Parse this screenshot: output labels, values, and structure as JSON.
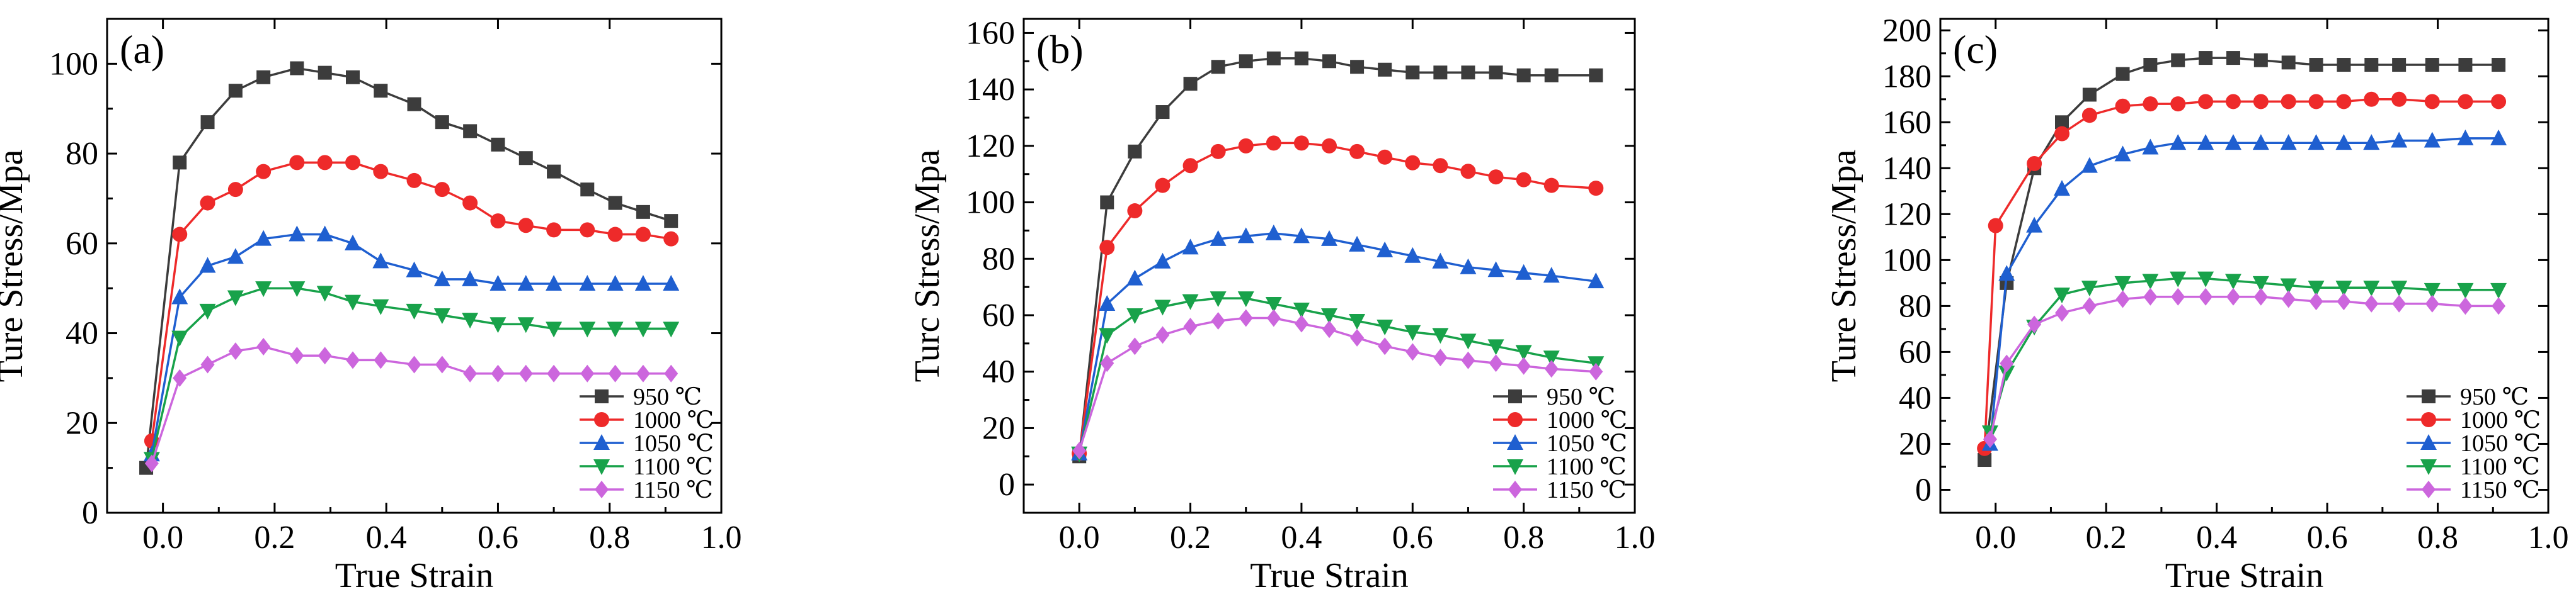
{
  "colors": {
    "s950": "#3c3c3c",
    "s1000": "#ee2a2a",
    "s1050": "#1f5fd0",
    "s1100": "#18a24a",
    "s1150": "#cc66dd"
  },
  "chart_data": [
    {
      "type": "line",
      "panel_label": "(a)",
      "xlabel": "True Strain",
      "ylabel": "Ture Stress/Mpa",
      "xlim": [
        -0.1,
        1.0
      ],
      "ylim": [
        0,
        110
      ],
      "xticks": [
        0.0,
        0.2,
        0.4,
        0.6,
        0.8,
        1.0
      ],
      "xtick_labels": [
        "0.0",
        "0.2",
        "0.4",
        "0.6",
        "0.8",
        "1.0"
      ],
      "yticks": [
        0,
        20,
        40,
        60,
        80,
        100
      ],
      "ytick_labels": [
        "0",
        "20",
        "40",
        "60",
        "80",
        "100"
      ],
      "legend_position": "bottom-right",
      "series": [
        {
          "name": "950 ℃",
          "marker": "square",
          "color_key": "s950",
          "x": [
            -0.03,
            0.03,
            0.08,
            0.13,
            0.18,
            0.24,
            0.29,
            0.34,
            0.39,
            0.45,
            0.5,
            0.55,
            0.6,
            0.65,
            0.7,
            0.76,
            0.81,
            0.86,
            0.91
          ],
          "y": [
            10,
            78,
            87,
            94,
            97,
            99,
            98,
            97,
            94,
            91,
            87,
            85,
            82,
            79,
            76,
            72,
            69,
            67,
            65
          ]
        },
        {
          "name": "1000 ℃",
          "marker": "circle",
          "color_key": "s1000",
          "x": [
            -0.02,
            0.03,
            0.08,
            0.13,
            0.18,
            0.24,
            0.29,
            0.34,
            0.39,
            0.45,
            0.5,
            0.55,
            0.6,
            0.65,
            0.7,
            0.76,
            0.81,
            0.86,
            0.91
          ],
          "y": [
            16,
            62,
            69,
            72,
            76,
            78,
            78,
            78,
            76,
            74,
            72,
            69,
            65,
            64,
            63,
            63,
            62,
            62,
            61
          ]
        },
        {
          "name": "1050 ℃",
          "marker": "triangle-up",
          "color_key": "s1050",
          "x": [
            -0.02,
            0.03,
            0.08,
            0.13,
            0.18,
            0.24,
            0.29,
            0.34,
            0.39,
            0.45,
            0.5,
            0.55,
            0.6,
            0.65,
            0.7,
            0.76,
            0.81,
            0.86,
            0.91
          ],
          "y": [
            13,
            48,
            55,
            57,
            61,
            62,
            62,
            60,
            56,
            54,
            52,
            52,
            51,
            51,
            51,
            51,
            51,
            51,
            51
          ]
        },
        {
          "name": "1100 ℃",
          "marker": "triangle-down",
          "color_key": "s1100",
          "x": [
            -0.02,
            0.03,
            0.08,
            0.13,
            0.18,
            0.24,
            0.29,
            0.34,
            0.39,
            0.45,
            0.5,
            0.55,
            0.6,
            0.65,
            0.7,
            0.76,
            0.81,
            0.86,
            0.91
          ],
          "y": [
            12,
            39,
            45,
            48,
            50,
            50,
            49,
            47,
            46,
            45,
            44,
            43,
            42,
            42,
            41,
            41,
            41,
            41,
            41
          ]
        },
        {
          "name": "1150 ℃",
          "marker": "diamond",
          "color_key": "s1150",
          "x": [
            -0.02,
            0.03,
            0.08,
            0.13,
            0.18,
            0.24,
            0.29,
            0.34,
            0.39,
            0.45,
            0.5,
            0.55,
            0.6,
            0.65,
            0.7,
            0.76,
            0.81,
            0.86,
            0.91
          ],
          "y": [
            11,
            30,
            33,
            36,
            37,
            35,
            35,
            34,
            34,
            33,
            33,
            31,
            31,
            31,
            31,
            31,
            31,
            31,
            31
          ]
        }
      ]
    },
    {
      "type": "line",
      "panel_label": "(b)",
      "xlabel": "True Strain",
      "ylabel": "Turc Stress/Mpa",
      "xlim": [
        -0.1,
        1.0
      ],
      "ylim": [
        -10,
        165
      ],
      "xticks": [
        0.0,
        0.2,
        0.4,
        0.6,
        0.8,
        1.0
      ],
      "xtick_labels": [
        "0.0",
        "0.2",
        "0.4",
        "0.6",
        "0.8",
        "1.0"
      ],
      "yticks": [
        0,
        20,
        40,
        60,
        80,
        100,
        120,
        140,
        160
      ],
      "ytick_labels": [
        "0",
        "20",
        "40",
        "60",
        "80",
        "100",
        "120",
        "140",
        "160"
      ],
      "legend_position": "bottom-right",
      "series": [
        {
          "name": "950 ℃",
          "marker": "square",
          "color_key": "s950",
          "x": [
            0.0,
            0.05,
            0.1,
            0.15,
            0.2,
            0.25,
            0.3,
            0.35,
            0.4,
            0.45,
            0.5,
            0.55,
            0.6,
            0.65,
            0.7,
            0.75,
            0.8,
            0.85,
            0.93
          ],
          "y": [
            10,
            100,
            118,
            132,
            142,
            148,
            150,
            151,
            151,
            150,
            148,
            147,
            146,
            146,
            146,
            146,
            145,
            145,
            145
          ]
        },
        {
          "name": "1000 ℃",
          "marker": "circle",
          "color_key": "s1000",
          "x": [
            0.0,
            0.05,
            0.1,
            0.15,
            0.2,
            0.25,
            0.3,
            0.35,
            0.4,
            0.45,
            0.5,
            0.55,
            0.6,
            0.65,
            0.7,
            0.75,
            0.8,
            0.85,
            0.93
          ],
          "y": [
            11,
            84,
            97,
            106,
            113,
            118,
            120,
            121,
            121,
            120,
            118,
            116,
            114,
            113,
            111,
            109,
            108,
            106,
            105
          ]
        },
        {
          "name": "1050 ℃",
          "marker": "triangle-up",
          "color_key": "s1050",
          "x": [
            0.0,
            0.05,
            0.1,
            0.15,
            0.2,
            0.25,
            0.3,
            0.35,
            0.4,
            0.45,
            0.5,
            0.55,
            0.6,
            0.65,
            0.7,
            0.75,
            0.8,
            0.85,
            0.93
          ],
          "y": [
            11,
            64,
            73,
            79,
            84,
            87,
            88,
            89,
            88,
            87,
            85,
            83,
            81,
            79,
            77,
            76,
            75,
            74,
            72
          ]
        },
        {
          "name": "1100 ℃",
          "marker": "triangle-down",
          "color_key": "s1100",
          "x": [
            0.0,
            0.05,
            0.1,
            0.15,
            0.2,
            0.25,
            0.3,
            0.35,
            0.4,
            0.45,
            0.5,
            0.55,
            0.6,
            0.65,
            0.7,
            0.75,
            0.8,
            0.85,
            0.93
          ],
          "y": [
            11,
            53,
            60,
            63,
            65,
            66,
            66,
            64,
            62,
            60,
            58,
            56,
            54,
            53,
            51,
            49,
            47,
            45,
            43
          ]
        },
        {
          "name": "1150 ℃",
          "marker": "diamond",
          "color_key": "s1150",
          "x": [
            0.0,
            0.05,
            0.1,
            0.15,
            0.2,
            0.25,
            0.3,
            0.35,
            0.4,
            0.45,
            0.5,
            0.55,
            0.6,
            0.65,
            0.7,
            0.75,
            0.8,
            0.85,
            0.93
          ],
          "y": [
            12,
            43,
            49,
            53,
            56,
            58,
            59,
            59,
            57,
            55,
            52,
            49,
            47,
            45,
            44,
            43,
            42,
            41,
            40
          ]
        }
      ]
    },
    {
      "type": "line",
      "panel_label": "(c)",
      "xlabel": "True Strain",
      "ylabel": "Ture Stress/Mpa",
      "xlim": [
        -0.1,
        1.0
      ],
      "ylim": [
        -10,
        205
      ],
      "xticks": [
        0.0,
        0.2,
        0.4,
        0.6,
        0.8,
        1.0
      ],
      "xtick_labels": [
        "0.0",
        "0.2",
        "0.4",
        "0.6",
        "0.8",
        "1.0"
      ],
      "yticks": [
        0,
        20,
        40,
        60,
        80,
        100,
        120,
        140,
        160,
        180,
        200
      ],
      "ytick_labels": [
        "0",
        "20",
        "40",
        "60",
        "80",
        "100",
        "120",
        "140",
        "160",
        "180",
        "200"
      ],
      "legend_position": "bottom-right",
      "series": [
        {
          "name": "950 ℃",
          "marker": "square",
          "color_key": "s950",
          "x": [
            -0.02,
            0.02,
            0.07,
            0.12,
            0.17,
            0.23,
            0.28,
            0.33,
            0.38,
            0.43,
            0.48,
            0.53,
            0.58,
            0.63,
            0.68,
            0.73,
            0.79,
            0.85,
            0.91
          ],
          "y": [
            13,
            90,
            140,
            160,
            172,
            181,
            185,
            187,
            188,
            188,
            187,
            186,
            185,
            185,
            185,
            185,
            185,
            185,
            185
          ]
        },
        {
          "name": "1000 ℃",
          "marker": "circle",
          "color_key": "s1000",
          "x": [
            -0.02,
            0.0,
            0.07,
            0.12,
            0.17,
            0.23,
            0.28,
            0.33,
            0.38,
            0.43,
            0.48,
            0.53,
            0.58,
            0.63,
            0.68,
            0.73,
            0.79,
            0.85,
            0.91
          ],
          "y": [
            18,
            115,
            142,
            155,
            163,
            167,
            168,
            168,
            169,
            169,
            169,
            169,
            169,
            169,
            170,
            170,
            169,
            169,
            169
          ]
        },
        {
          "name": "1050 ℃",
          "marker": "triangle-up",
          "color_key": "s1050",
          "x": [
            -0.01,
            0.02,
            0.07,
            0.12,
            0.17,
            0.23,
            0.28,
            0.33,
            0.38,
            0.43,
            0.48,
            0.53,
            0.58,
            0.63,
            0.68,
            0.73,
            0.79,
            0.85,
            0.91
          ],
          "y": [
            20,
            94,
            115,
            131,
            141,
            146,
            149,
            151,
            151,
            151,
            151,
            151,
            151,
            151,
            151,
            152,
            152,
            153,
            153
          ]
        },
        {
          "name": "1100 ℃",
          "marker": "triangle-down",
          "color_key": "s1100",
          "x": [
            -0.01,
            0.02,
            0.07,
            0.12,
            0.17,
            0.23,
            0.28,
            0.33,
            0.38,
            0.43,
            0.48,
            0.53,
            0.58,
            0.63,
            0.68,
            0.73,
            0.79,
            0.85,
            0.91
          ],
          "y": [
            25,
            51,
            71,
            85,
            88,
            90,
            91,
            92,
            92,
            91,
            90,
            89,
            88,
            88,
            88,
            88,
            87,
            87,
            87
          ]
        },
        {
          "name": "1150 ℃",
          "marker": "diamond",
          "color_key": "s1150",
          "x": [
            -0.01,
            0.02,
            0.07,
            0.12,
            0.17,
            0.23,
            0.28,
            0.33,
            0.38,
            0.43,
            0.48,
            0.53,
            0.58,
            0.63,
            0.68,
            0.73,
            0.79,
            0.85,
            0.91
          ],
          "y": [
            22,
            55,
            72,
            77,
            80,
            83,
            84,
            84,
            84,
            84,
            84,
            83,
            82,
            82,
            81,
            81,
            81,
            80,
            80
          ]
        }
      ]
    }
  ]
}
